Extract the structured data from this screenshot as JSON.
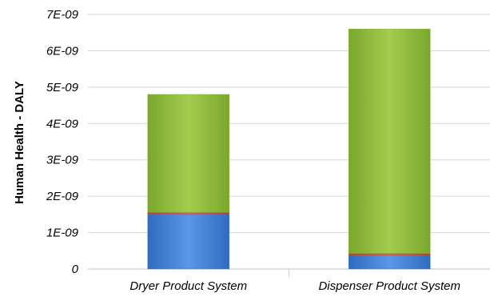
{
  "chart_data": {
    "type": "bar",
    "stacked": true,
    "title": "",
    "xlabel": "",
    "ylabel": "Human Health - DALY",
    "ylim": [
      0,
      7e-09
    ],
    "y_ticks": [
      {
        "value": 0,
        "label": "0"
      },
      {
        "value": 1e-09,
        "label": "1E-09"
      },
      {
        "value": 2e-09,
        "label": "2E-09"
      },
      {
        "value": 3e-09,
        "label": "3E-09"
      },
      {
        "value": 4e-09,
        "label": "4E-09"
      },
      {
        "value": 5e-09,
        "label": "5E-09"
      },
      {
        "value": 6e-09,
        "label": "6E-09"
      },
      {
        "value": 7e-09,
        "label": "7E-09"
      }
    ],
    "categories": [
      "Dryer Product System",
      "Dispenser Product System"
    ],
    "series": [
      {
        "values": [
          1.5e-09,
          3.8e-10
        ],
        "color": "#3f7fd1"
      },
      {
        "values": [
          6e-11,
          5e-11
        ],
        "color": "#c0504d"
      },
      {
        "values": [
          3.24e-09,
          6.17e-09
        ],
        "color": "#8cb83a"
      }
    ],
    "grid": true,
    "legend": "none"
  }
}
